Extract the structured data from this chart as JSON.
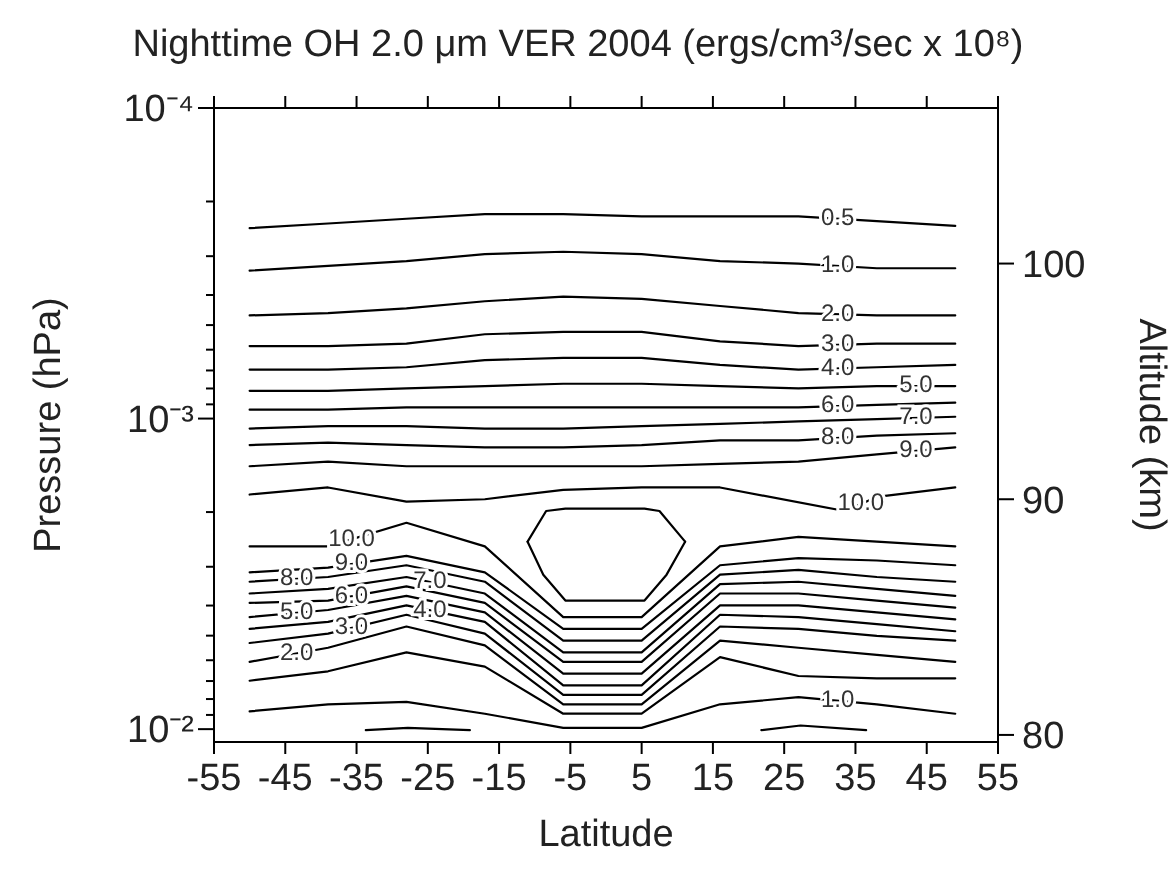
{
  "chart_data": {
    "type": "line",
    "title": "Nighttime OH 2.0 μm VER 2004 (ergs/cm³/sec x 10⁸)",
    "xlabel": "Latitude",
    "ylabel": "Pressure (hPa)",
    "y2label": "Altitude (km)",
    "x": [
      -50,
      -39,
      -28,
      -17,
      -6,
      5,
      16,
      27,
      38,
      49
    ],
    "xlim": [
      -55,
      55
    ],
    "xticks": [
      -55,
      -45,
      -35,
      -25,
      -15,
      -5,
      5,
      15,
      25,
      35,
      45,
      55
    ],
    "log": "y",
    "ylim": [
      0.011,
      0.0001
    ],
    "yticks": [
      {
        "value": 0.0001,
        "label": "10⁻⁴"
      },
      {
        "value": 0.0002,
        "label": null
      },
      {
        "value": 0.0003,
        "label": null
      },
      {
        "value": 0.0004,
        "label": null
      },
      {
        "value": 0.0005,
        "label": null
      },
      {
        "value": 0.0006,
        "label": null
      },
      {
        "value": 0.0007,
        "label": null
      },
      {
        "value": 0.0008,
        "label": null
      },
      {
        "value": 0.0009,
        "label": null
      },
      {
        "value": 0.001,
        "label": "10⁻³"
      },
      {
        "value": 0.002,
        "label": null
      },
      {
        "value": 0.003,
        "label": null
      },
      {
        "value": 0.004,
        "label": null
      },
      {
        "value": 0.005,
        "label": null
      },
      {
        "value": 0.006,
        "label": null
      },
      {
        "value": 0.007,
        "label": null
      },
      {
        "value": 0.008,
        "label": null
      },
      {
        "value": 0.009,
        "label": null
      },
      {
        "value": 0.01,
        "label": "10⁻²"
      }
    ],
    "y2lim": [
      79.7,
      106.6
    ],
    "y2ticks": [
      80,
      90,
      100
    ],
    "series": [
      {
        "name": "0.5",
        "color": "#000000",
        "axis": "y2",
        "values": [
          101.5,
          101.7,
          101.9,
          102.1,
          102.1,
          102.0,
          102.0,
          102.0,
          101.8,
          101.6
        ]
      },
      {
        "name": "1.0",
        "color": "#000000",
        "axis": "y2",
        "values": [
          99.7,
          99.9,
          100.1,
          100.4,
          100.5,
          100.4,
          100.1,
          100.0,
          99.8,
          99.8
        ]
      },
      {
        "name": "2.0",
        "color": "#000000",
        "axis": "y2",
        "values": [
          97.8,
          97.9,
          98.1,
          98.4,
          98.6,
          98.5,
          98.2,
          97.9,
          97.8,
          97.8
        ]
      },
      {
        "name": "3.0",
        "color": "#000000",
        "axis": "y2",
        "values": [
          96.5,
          96.5,
          96.6,
          97.0,
          97.1,
          97.1,
          96.7,
          96.5,
          96.6,
          96.6
        ]
      },
      {
        "name": "4.0",
        "color": "#000000",
        "axis": "y2",
        "values": [
          95.5,
          95.5,
          95.6,
          95.9,
          96.0,
          96.0,
          95.7,
          95.5,
          95.6,
          95.7
        ]
      },
      {
        "name": "5.0",
        "color": "#000000",
        "axis": "y2",
        "values": [
          94.6,
          94.6,
          94.7,
          94.8,
          94.9,
          94.9,
          94.8,
          94.7,
          94.8,
          94.8
        ]
      },
      {
        "name": "6.0",
        "color": "#000000",
        "axis": "y2",
        "values": [
          93.8,
          93.8,
          93.9,
          93.9,
          93.9,
          93.9,
          93.9,
          93.9,
          94.0,
          94.1
        ]
      },
      {
        "name": "7.0",
        "color": "#000000",
        "axis": "y2",
        "values": [
          93.0,
          93.1,
          93.1,
          93.0,
          93.0,
          93.1,
          93.2,
          93.3,
          93.4,
          93.5
        ]
      },
      {
        "name": "8.0",
        "color": "#000000",
        "axis": "y2",
        "values": [
          92.3,
          92.4,
          92.3,
          92.2,
          92.2,
          92.3,
          92.5,
          92.5,
          92.7,
          92.8
        ]
      },
      {
        "name": "9.0",
        "color": "#000000",
        "axis": "y2",
        "values": [
          91.4,
          91.6,
          91.4,
          91.4,
          91.4,
          91.4,
          91.5,
          91.6,
          91.9,
          92.2
        ]
      },
      {
        "name": "10.0",
        "color": "#000000",
        "axis": "y2",
        "x": [
          -50,
          -39,
          -28,
          -17,
          -6,
          5,
          16,
          33.5,
          38,
          49
        ],
        "values": [
          90.2,
          90.5,
          89.9,
          90.0,
          90.4,
          90.5,
          90.5,
          89.5,
          90.1,
          90.5
        ]
      },
      {
        "color": "#000000",
        "axis": "y2",
        "x": [
          -11.0,
          -8.4,
          -5.7,
          5.4,
          7.5,
          11.1
        ],
        "values": [
          88.2,
          89.5,
          89.6,
          89.6,
          89.5,
          88.2
        ]
      },
      {
        "color": "#000000",
        "axis": "y2",
        "x": [
          -11.0,
          -8.8,
          -5.7,
          5.4,
          8.5,
          11.1
        ],
        "values": [
          88.2,
          86.8,
          85.7,
          85.7,
          86.8,
          88.2
        ]
      },
      {
        "name": "10.0",
        "color": "#000000",
        "axis": "y2",
        "values": [
          88.0,
          88.0,
          89.0,
          88.0,
          85.0,
          85.0,
          88.0,
          88.4,
          88.2,
          88.0
        ]
      },
      {
        "name": "9.0",
        "color": "#000000",
        "axis": "y2",
        "values": [
          86.9,
          87.1,
          87.6,
          86.9,
          84.5,
          84.5,
          87.2,
          87.5,
          87.4,
          87.2
        ]
      },
      {
        "name": "8.0",
        "color": "#000000",
        "axis": "y2",
        "values": [
          86.5,
          86.7,
          87.2,
          86.5,
          84.0,
          84.0,
          86.8,
          87.0,
          86.7,
          86.5
        ]
      },
      {
        "name": "7.0",
        "color": "#000000",
        "axis": "y2",
        "values": [
          86.0,
          86.2,
          86.7,
          86.0,
          83.5,
          83.5,
          86.4,
          86.5,
          86.2,
          85.9
        ]
      },
      {
        "name": "6.0",
        "color": "#000000",
        "axis": "y2",
        "values": [
          85.6,
          85.7,
          86.3,
          85.6,
          83.1,
          83.1,
          86.0,
          86.0,
          85.7,
          85.4
        ]
      },
      {
        "name": "5.0",
        "color": "#000000",
        "axis": "y2",
        "values": [
          85.0,
          85.3,
          85.9,
          85.2,
          82.6,
          82.6,
          85.5,
          85.5,
          85.2,
          84.9
        ]
      },
      {
        "name": "4.0",
        "color": "#000000",
        "axis": "y2",
        "values": [
          84.5,
          84.8,
          85.5,
          84.8,
          82.1,
          82.1,
          85.1,
          85.0,
          84.7,
          84.4
        ]
      },
      {
        "name": "3.0",
        "color": "#000000",
        "axis": "y2",
        "values": [
          83.9,
          84.3,
          85.1,
          84.3,
          81.7,
          81.7,
          84.6,
          84.5,
          84.2,
          84.0
        ]
      },
      {
        "name": "2.0",
        "color": "#000000",
        "axis": "y2",
        "values": [
          83.1,
          83.7,
          84.6,
          83.8,
          81.3,
          81.3,
          84.0,
          83.7,
          83.4,
          83.1
        ]
      },
      {
        "color": "#000000",
        "axis": "y2",
        "values": [
          82.3,
          82.7,
          83.5,
          82.9,
          80.9,
          80.9,
          83.3,
          82.5,
          82.4,
          82.4
        ]
      },
      {
        "name": "1.0",
        "color": "#000000",
        "axis": "y2",
        "values": [
          81.0,
          81.3,
          81.4,
          80.9,
          80.3,
          80.3,
          81.3,
          81.6,
          81.3,
          80.9
        ]
      },
      {
        "color": "#000000",
        "axis": "y2",
        "x": [
          -33.7,
          -27.8,
          -19.1
        ],
        "values": [
          80.2,
          80.3,
          80.2
        ]
      },
      {
        "color": "#000000",
        "axis": "y2",
        "x": [
          21.8,
          27.3,
          36.5
        ],
        "values": [
          80.2,
          80.4,
          80.2
        ]
      }
    ]
  }
}
